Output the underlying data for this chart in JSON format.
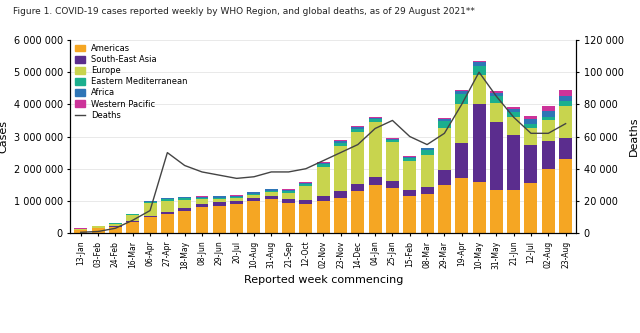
{
  "title": "Figure 1. COVID-19 cases reported weekly by WHO Region, and global deaths, as of 29 August 2021**",
  "xlabel": "Reported week commencing",
  "ylabel_left": "Cases",
  "ylabel_right": "Deaths",
  "colors": {
    "Americas": "#F5A623",
    "South-East Asia": "#5B2D8E",
    "Europe": "#C8D44E",
    "Eastern Mediterranean": "#1BAF8E",
    "Africa": "#2E75B6",
    "Western Pacific": "#CC3399",
    "Deaths": "#444444"
  },
  "x_labels": [
    "13-Jan",
    "03-Feb",
    "24-Feb",
    "16-Mar",
    "06-Apr",
    "27-Apr",
    "18-May",
    "08-Jun",
    "29-Jun",
    "20-Jul",
    "10-Aug",
    "31-Aug",
    "21-Sep",
    "12-Oct",
    "02-Nov",
    "23-Nov",
    "14-Dec",
    "04-Jan",
    "25-Jan",
    "15-Feb",
    "08-Mar",
    "29-Mar",
    "19-Apr",
    "10-May",
    "31-May",
    "21-Jun",
    "12-Jul",
    "02-Aug",
    "23-Aug"
  ],
  "Americas": [
    100000,
    150000,
    200000,
    350000,
    500000,
    600000,
    700000,
    800000,
    850000,
    900000,
    1000000,
    1050000,
    950000,
    900000,
    1000000,
    1100000,
    1300000,
    1500000,
    1400000,
    1150000,
    1200000,
    1500000,
    1700000,
    1600000,
    1350000,
    1350000,
    1550000,
    2000000,
    2300000
  ],
  "South-East Asia": [
    5000,
    8000,
    12000,
    20000,
    35000,
    55000,
    80000,
    100000,
    110000,
    100000,
    100000,
    110000,
    110000,
    120000,
    150000,
    200000,
    230000,
    250000,
    220000,
    190000,
    230000,
    450000,
    1100000,
    2400000,
    2100000,
    1700000,
    1200000,
    850000,
    650000
  ],
  "Europe": [
    30000,
    50000,
    80000,
    200000,
    400000,
    350000,
    250000,
    150000,
    100000,
    80000,
    90000,
    120000,
    200000,
    450000,
    900000,
    1400000,
    1600000,
    1700000,
    1200000,
    900000,
    1000000,
    1300000,
    1200000,
    900000,
    600000,
    550000,
    500000,
    650000,
    1000000
  ],
  "Eastern Mediterranean": [
    5000,
    8000,
    12000,
    20000,
    40000,
    60000,
    55000,
    45000,
    35000,
    30000,
    35000,
    40000,
    45000,
    60000,
    90000,
    110000,
    100000,
    80000,
    70000,
    90000,
    150000,
    230000,
    320000,
    280000,
    200000,
    160000,
    130000,
    110000,
    140000
  ],
  "Africa": [
    2000,
    3000,
    5000,
    8000,
    12000,
    20000,
    28000,
    40000,
    50000,
    55000,
    55000,
    50000,
    40000,
    40000,
    50000,
    60000,
    60000,
    55000,
    45000,
    40000,
    50000,
    70000,
    100000,
    120000,
    100000,
    110000,
    170000,
    195000,
    170000
  ],
  "Western Pacific": [
    5000,
    6000,
    7000,
    8000,
    10000,
    10000,
    10000,
    12000,
    12000,
    12000,
    12000,
    15000,
    15000,
    15000,
    20000,
    25000,
    30000,
    35000,
    30000,
    25000,
    28000,
    35000,
    40000,
    45000,
    50000,
    60000,
    90000,
    130000,
    180000
  ],
  "Deaths": [
    500,
    1000,
    3000,
    8000,
    14000,
    50000,
    42000,
    38000,
    36000,
    34000,
    35000,
    38000,
    38000,
    40000,
    45000,
    50000,
    55000,
    65000,
    70000,
    60000,
    55000,
    62000,
    80000,
    100000,
    85000,
    72000,
    62000,
    62000,
    68000
  ],
  "ylim_left": [
    0,
    6000000
  ],
  "ylim_right": [
    0,
    120000
  ],
  "y_ticks_left": [
    0,
    1000000,
    2000000,
    3000000,
    4000000,
    5000000,
    6000000
  ],
  "y_ticks_right": [
    0,
    20000,
    40000,
    60000,
    80000,
    100000,
    120000
  ]
}
